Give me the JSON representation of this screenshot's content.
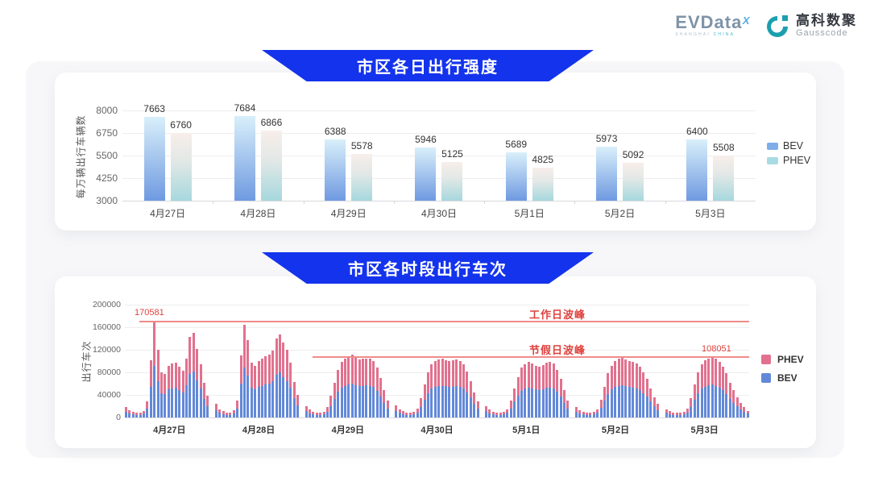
{
  "header": {
    "evdata": {
      "text": "EVData",
      "superscript": "X",
      "subtext_left": "SHANGHAI",
      "subtext_right": "CHINA"
    },
    "gausscode": {
      "cn": "高科数聚",
      "en": "Gausscode"
    }
  },
  "colors": {
    "banner_blue": "#1433ec",
    "bev_blue": "#6289d9",
    "phev_pink": "#e1718e",
    "bev_gradient_top": "#d9effa",
    "bev_gradient_bottom": "#6f9ae1",
    "phev_gradient_top": "#f8eeea",
    "phev_gradient_mid": "#e2e8e6",
    "phev_gradient_bottom": "#a6d8de",
    "legend1_bev": "#7fade8",
    "legend1_phev": "#a9dbe2",
    "annotation_red": "#e0413d",
    "peak_line_red": "#ef8b8b"
  },
  "chart_data": [
    {
      "id": "daily_intensity",
      "type": "bar",
      "title": "市区各日出行强度",
      "ylabel": "每万辆出行车辆数",
      "xlabel": "",
      "ylim": [
        3000,
        8000
      ],
      "yticks": [
        3000,
        4250,
        5500,
        6750,
        8000
      ],
      "grid": true,
      "legend_position": "right",
      "categories": [
        "4月27日",
        "4月28日",
        "4月29日",
        "4月30日",
        "5月1日",
        "5月2日",
        "5月3日"
      ],
      "series": [
        {
          "name": "BEV",
          "values": [
            7663,
            7684,
            6388,
            5946,
            5689,
            5973,
            6400
          ]
        },
        {
          "name": "PHEV",
          "values": [
            6760,
            6866,
            5578,
            5125,
            4825,
            5092,
            5508
          ]
        }
      ]
    },
    {
      "id": "hourly_trips",
      "type": "bar",
      "stacked": true,
      "title": "市区各时段出行车次",
      "ylabel": "出行车次",
      "xlabel": "",
      "ylim": [
        0,
        200000
      ],
      "yticks": [
        0,
        40000,
        80000,
        120000,
        160000,
        200000
      ],
      "grid": true,
      "legend_position": "right",
      "legend": [
        "PHEV",
        "BEV"
      ],
      "annotations": {
        "workday": {
          "label": "工作日波峰",
          "value_label": "170581",
          "value": 170581
        },
        "holiday": {
          "label": "节假日波峰",
          "value_label": "108051",
          "value": 108051
        }
      },
      "days": [
        {
          "label": "4月27日",
          "bev": [
            9700,
            7000,
            5400,
            4300,
            4900,
            6500,
            15100,
            54500,
            92100,
            64800,
            43200,
            41600,
            49700,
            51800,
            52400,
            48600,
            44800,
            56700,
            77200,
            81000,
            65900,
            51300,
            33500,
            20500
          ],
          "phev": [
            8300,
            6000,
            4600,
            3700,
            4100,
            5500,
            12900,
            46500,
            78481,
            55200,
            36800,
            35400,
            42300,
            44200,
            44600,
            41400,
            38200,
            48300,
            65800,
            69000,
            56100,
            43700,
            28500,
            17500
          ]
        },
        {
          "label": "4月28日",
          "bev": [
            13000,
            8100,
            5900,
            4900,
            4900,
            7000,
            16200,
            59400,
            89100,
            74000,
            52400,
            49700,
            54000,
            56200,
            58300,
            60500,
            63700,
            75600,
            79400,
            71800,
            64800,
            52400,
            34000,
            21600
          ],
          "phev": [
            11000,
            6900,
            5100,
            4100,
            4100,
            6000,
            13800,
            50600,
            75900,
            63000,
            44600,
            42300,
            46000,
            47800,
            49700,
            51500,
            54300,
            64400,
            67600,
            61200,
            55200,
            44600,
            29000,
            18400
          ]
        },
        {
          "label": "4月29日",
          "bev": [
            10800,
            7600,
            5400,
            4300,
            4300,
            5400,
            9700,
            20500,
            33500,
            45900,
            52900,
            56200,
            58300,
            60500,
            57200,
            55600,
            56200,
            56700,
            56200,
            54000,
            47500,
            37800,
            25900,
            16200
          ],
          "phev": [
            9200,
            6400,
            4600,
            3700,
            3700,
            4600,
            8300,
            17500,
            28500,
            39100,
            45100,
            47800,
            49700,
            51500,
            48800,
            47400,
            47800,
            48300,
            47800,
            46000,
            40500,
            32200,
            22100,
            13800
          ]
        },
        {
          "label": "4月30日",
          "bev": [
            11900,
            8100,
            5900,
            4300,
            4300,
            5400,
            8600,
            18400,
            31300,
            43200,
            51300,
            54000,
            55600,
            56200,
            55100,
            54000,
            54500,
            55600,
            54000,
            51300,
            44300,
            35100,
            24300,
            15100
          ],
          "phev": [
            10100,
            6900,
            5100,
            3700,
            3700,
            4600,
            7400,
            15600,
            26700,
            36800,
            43700,
            46000,
            47400,
            47800,
            46900,
            46000,
            46500,
            47400,
            46000,
            43700,
            37700,
            29900,
            20700,
            12900
          ]
        },
        {
          "label": "5月1日",
          "bev": [
            10800,
            7600,
            5400,
            4300,
            4300,
            5400,
            8100,
            16200,
            28100,
            38900,
            47500,
            51300,
            52900,
            51800,
            49700,
            48600,
            50200,
            52400,
            53500,
            51800,
            45900,
            36700,
            25900,
            16200
          ],
          "phev": [
            9200,
            6400,
            4600,
            3700,
            3700,
            4600,
            6900,
            13800,
            23900,
            33100,
            40500,
            43700,
            45100,
            44200,
            42300,
            41400,
            42800,
            44600,
            45500,
            44200,
            39100,
            31300,
            22100,
            13800
          ]
        },
        {
          "label": "5月2日",
          "bev": [
            9700,
            7000,
            5400,
            4300,
            4300,
            5400,
            8100,
            17300,
            29700,
            42100,
            49700,
            54000,
            56200,
            57200,
            55600,
            54000,
            52900,
            51800,
            48600,
            43200,
            36700,
            28100,
            19400,
            13000
          ],
          "phev": [
            8300,
            6000,
            4600,
            3700,
            3700,
            4600,
            6900,
            14700,
            25300,
            35900,
            42300,
            46000,
            47800,
            48800,
            47400,
            46000,
            45100,
            44200,
            41400,
            36800,
            31300,
            23900,
            16600,
            11000
          ]
        },
        {
          "label": "5月3日",
          "bev": [
            8100,
            5900,
            4900,
            4300,
            4300,
            5400,
            8600,
            18400,
            31300,
            43200,
            51300,
            54500,
            56700,
            58300,
            56200,
            53500,
            48600,
            42100,
            33500,
            25900,
            19400,
            14000,
            9700,
            6500
          ],
          "phev": [
            6900,
            5100,
            4100,
            3700,
            3700,
            4600,
            7400,
            15600,
            26700,
            36800,
            43700,
            46500,
            48300,
            49751,
            47800,
            45500,
            41400,
            35900,
            28500,
            22100,
            16600,
            12000,
            8300,
            5500
          ]
        }
      ]
    }
  ]
}
